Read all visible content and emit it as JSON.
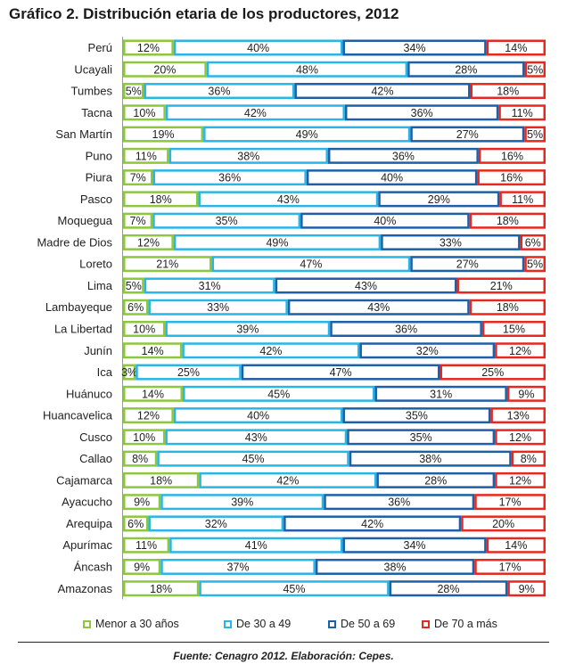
{
  "chart_data": {
    "type": "bar",
    "orientation": "horizontal",
    "stacked": true,
    "percent_stacked": true,
    "title": "Gráfico 2. Distribución etaria de los productores, 2012",
    "categories": [
      "Perú",
      "Ucayali",
      "Tumbes",
      "Tacna",
      "San Martín",
      "Puno",
      "Piura",
      "Pasco",
      "Moquegua",
      "Madre de Dios",
      "Loreto",
      "Lima",
      "Lambayeque",
      "La Libertad",
      "Junín",
      "Ica",
      "Huánuco",
      "Huancavelica",
      "Cusco",
      "Callao",
      "Cajamarca",
      "Ayacucho",
      "Arequipa",
      "Apurímac",
      "Áncash",
      "Amazonas"
    ],
    "series": [
      {
        "name": "Menor a 30 años",
        "color": "#8dc63f",
        "values": [
          12,
          20,
          5,
          10,
          19,
          11,
          7,
          18,
          7,
          12,
          21,
          5,
          6,
          10,
          14,
          3,
          14,
          12,
          10,
          8,
          18,
          9,
          6,
          11,
          9,
          18
        ]
      },
      {
        "name": "De 30 a 49",
        "color": "#29b6e6",
        "values": [
          40,
          48,
          36,
          42,
          49,
          38,
          36,
          43,
          35,
          49,
          47,
          31,
          33,
          39,
          42,
          25,
          45,
          40,
          43,
          45,
          42,
          39,
          32,
          41,
          37,
          45
        ]
      },
      {
        "name": "De 50 a 69",
        "color": "#1f5fa8",
        "values": [
          34,
          28,
          42,
          36,
          27,
          36,
          40,
          29,
          40,
          33,
          27,
          43,
          43,
          36,
          32,
          47,
          31,
          35,
          35,
          38,
          28,
          36,
          42,
          34,
          38,
          28
        ]
      },
      {
        "name": "De 70 a más",
        "color": "#e8281e",
        "values": [
          14,
          5,
          18,
          11,
          5,
          16,
          16,
          11,
          18,
          6,
          5,
          21,
          18,
          15,
          12,
          25,
          9,
          13,
          12,
          8,
          12,
          17,
          20,
          14,
          17,
          9
        ]
      }
    ],
    "value_suffix": "%",
    "legend_position": "bottom"
  },
  "source": "Fuente: Cenagro 2012. Elaboración: Cepes."
}
